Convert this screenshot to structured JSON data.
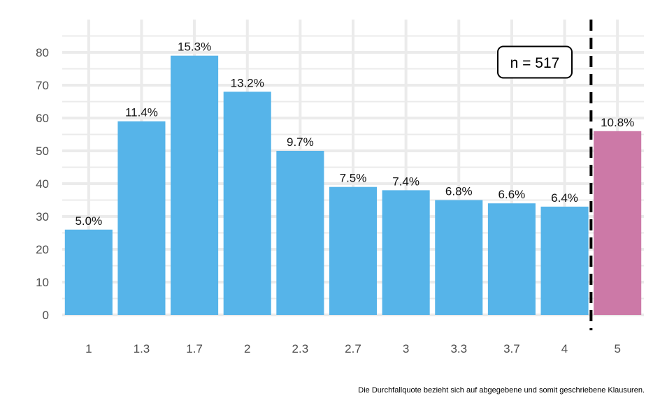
{
  "chart_data": {
    "type": "bar",
    "categories": [
      "1",
      "1.3",
      "1.7",
      "2",
      "2.3",
      "2.7",
      "3",
      "3.3",
      "3.7",
      "4",
      "5"
    ],
    "values": [
      26,
      59,
      79,
      68,
      50,
      39,
      38,
      35,
      34,
      33,
      56
    ],
    "data_labels": [
      "5.0%",
      "11.4%",
      "15.3%",
      "13.2%",
      "9.7%",
      "7.5%",
      "7.4%",
      "6.8%",
      "6.6%",
      "6.4%",
      "10.8%"
    ],
    "y_ticks": [
      0,
      10,
      20,
      30,
      40,
      50,
      60,
      70,
      80
    ],
    "ylim": [
      0,
      90
    ],
    "grid": true,
    "reference_line": {
      "between": [
        "4",
        "5"
      ],
      "style": "dashed",
      "color": "#000000"
    },
    "annotation": {
      "text": "n = 517",
      "placement": "top-right"
    },
    "colors": {
      "pass": "#56b4e9",
      "fail": "#cc79a7",
      "grid": "#ebebeb"
    },
    "caption": "Die Durchfallquote bezieht sich auf abgegebene und somit geschriebene Klausuren.",
    "title": "",
    "xlabel": "",
    "ylabel": ""
  }
}
